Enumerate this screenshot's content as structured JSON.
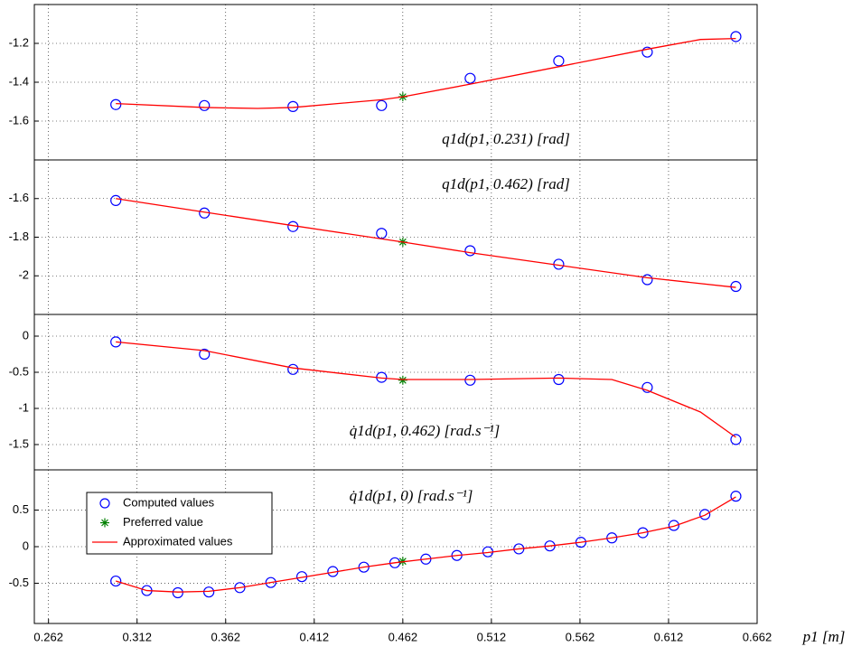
{
  "chart_data": [
    {
      "type": "line",
      "annotation": "q1d(p1, 0.231) [rad]",
      "ylim": [
        -1.8,
        -1.0
      ],
      "yticks": [
        -1.2,
        -1.4,
        -1.6
      ],
      "grid": true,
      "series": [
        {
          "marker": "circle",
          "color": "#0000ff",
          "x": [
            0.3,
            0.35,
            0.4,
            0.45,
            0.5,
            0.55,
            0.6,
            0.65
          ],
          "values": [
            -1.515,
            -1.52,
            -1.525,
            -1.52,
            -1.38,
            -1.29,
            -1.245,
            -1.165
          ]
        },
        {
          "marker": "star",
          "color": "#008000",
          "x": [
            0.462
          ],
          "values": [
            -1.475
          ]
        },
        {
          "marker": "none",
          "color": "#ff0000",
          "x": [
            0.3,
            0.35,
            0.38,
            0.4,
            0.45,
            0.462,
            0.5,
            0.55,
            0.6,
            0.63,
            0.65
          ],
          "values": [
            -1.51,
            -1.53,
            -1.535,
            -1.53,
            -1.49,
            -1.475,
            -1.41,
            -1.32,
            -1.23,
            -1.18,
            -1.175
          ]
        }
      ]
    },
    {
      "type": "line",
      "annotation": "q1d(p1, 0.462) [rad]",
      "ylim": [
        -2.2,
        -1.4
      ],
      "yticks": [
        -1.6,
        -1.8,
        -2
      ],
      "grid": true,
      "series": [
        {
          "marker": "circle",
          "color": "#0000ff",
          "x": [
            0.3,
            0.35,
            0.4,
            0.45,
            0.5,
            0.55,
            0.6,
            0.65
          ],
          "values": [
            -1.61,
            -1.675,
            -1.745,
            -1.78,
            -1.87,
            -1.94,
            -2.02,
            -2.055
          ]
        },
        {
          "marker": "star",
          "color": "#008000",
          "x": [
            0.462
          ],
          "values": [
            -1.825
          ]
        },
        {
          "marker": "none",
          "color": "#ff0000",
          "x": [
            0.3,
            0.35,
            0.4,
            0.462,
            0.5,
            0.55,
            0.6,
            0.65
          ],
          "values": [
            -1.6,
            -1.67,
            -1.74,
            -1.825,
            -1.88,
            -1.945,
            -2.01,
            -2.06
          ]
        }
      ]
    },
    {
      "type": "line",
      "annotation": "q̇1d(p1, 0.462) [rad.s⁻¹]",
      "ylim": [
        -1.85,
        0.3
      ],
      "yticks": [
        0,
        -0.5,
        -1,
        -1.5
      ],
      "grid": true,
      "series": [
        {
          "marker": "circle",
          "color": "#0000ff",
          "x": [
            0.3,
            0.35,
            0.4,
            0.45,
            0.5,
            0.55,
            0.6,
            0.65
          ],
          "values": [
            -0.08,
            -0.25,
            -0.46,
            -0.57,
            -0.61,
            -0.6,
            -0.71,
            -1.43
          ]
        },
        {
          "marker": "star",
          "color": "#008000",
          "x": [
            0.462
          ],
          "values": [
            -0.61
          ]
        },
        {
          "marker": "none",
          "color": "#ff0000",
          "x": [
            0.3,
            0.35,
            0.4,
            0.45,
            0.462,
            0.5,
            0.55,
            0.58,
            0.6,
            0.63,
            0.65
          ],
          "values": [
            -0.08,
            -0.2,
            -0.44,
            -0.58,
            -0.6,
            -0.6,
            -0.58,
            -0.6,
            -0.75,
            -1.05,
            -1.4
          ]
        }
      ]
    },
    {
      "type": "line",
      "annotation": "q̇1d(p1, 0) [rad.s⁻¹]",
      "ylim": [
        -1.05,
        1.05
      ],
      "yticks": [
        0.5,
        0,
        -0.5
      ],
      "grid": true,
      "xlim": [
        0.254,
        0.662
      ],
      "xticks": [
        0.262,
        0.312,
        0.362,
        0.412,
        0.462,
        0.512,
        0.562,
        0.612,
        0.662
      ],
      "xlabel": "p1 [m]",
      "legend": "upper left",
      "series": [
        {
          "name": "Computed values",
          "marker": "circle",
          "color": "#0000ff",
          "x": [
            0.3,
            0.3175,
            0.335,
            0.3525,
            0.37,
            0.3875,
            0.405,
            0.4225,
            0.44,
            0.4575,
            0.475,
            0.4925,
            0.51,
            0.5275,
            0.545,
            0.5625,
            0.58,
            0.5975,
            0.615,
            0.6325,
            0.65
          ],
          "values": [
            -0.47,
            -0.6,
            -0.63,
            -0.62,
            -0.56,
            -0.49,
            -0.41,
            -0.34,
            -0.28,
            -0.22,
            -0.17,
            -0.12,
            -0.07,
            -0.03,
            0.01,
            0.06,
            0.12,
            0.19,
            0.29,
            0.44,
            0.69
          ]
        },
        {
          "name": "Preferred value",
          "marker": "star",
          "color": "#008000",
          "x": [
            0.462
          ],
          "values": [
            -0.2
          ]
        },
        {
          "name": "Approximated values",
          "marker": "none",
          "color": "#ff0000",
          "x": [
            0.3,
            0.3175,
            0.335,
            0.3525,
            0.37,
            0.3875,
            0.405,
            0.4225,
            0.44,
            0.4575,
            0.475,
            0.4925,
            0.51,
            0.5275,
            0.545,
            0.5625,
            0.58,
            0.5975,
            0.615,
            0.6325,
            0.65
          ],
          "values": [
            -0.47,
            -0.6,
            -0.62,
            -0.61,
            -0.56,
            -0.49,
            -0.42,
            -0.35,
            -0.28,
            -0.22,
            -0.17,
            -0.12,
            -0.08,
            -0.03,
            0.01,
            0.06,
            0.12,
            0.19,
            0.28,
            0.43,
            0.68
          ]
        }
      ]
    }
  ]
}
